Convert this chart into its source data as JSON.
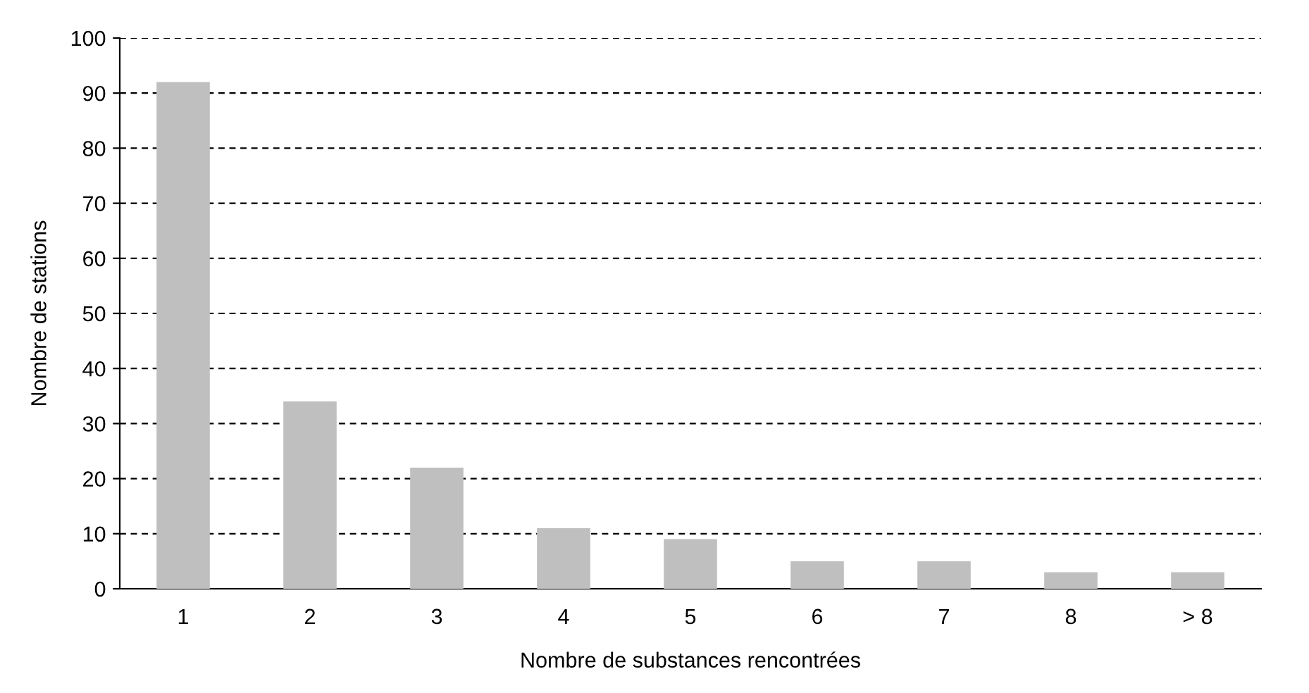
{
  "chart_data": {
    "type": "bar",
    "xlabel": "Nombre de substances rencontrées",
    "ylabel": "Nombre de stations",
    "categories": [
      "1",
      "2",
      "3",
      "4",
      "5",
      "6",
      "7",
      "8",
      "> 8"
    ],
    "values": [
      92,
      34,
      22,
      11,
      9,
      5,
      5,
      3,
      3
    ],
    "color": "#bfbfbf",
    "ylim": [
      0,
      100
    ],
    "yticks": [
      0,
      10,
      20,
      30,
      40,
      50,
      60,
      70,
      80,
      90,
      100
    ],
    "grid": "y"
  }
}
